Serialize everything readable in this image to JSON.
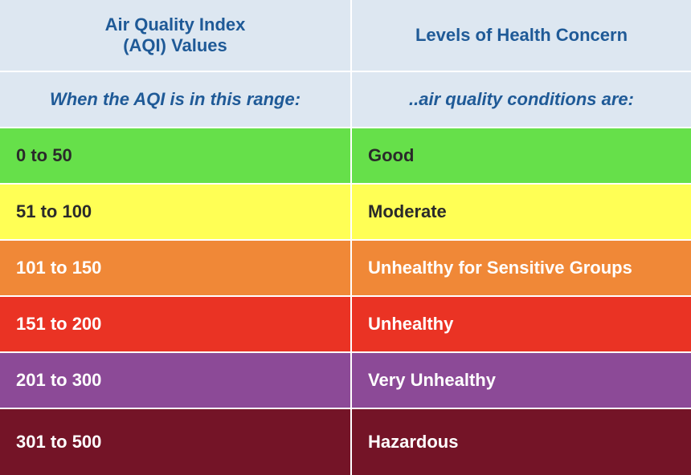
{
  "header": {
    "col1_title": "Air Quality Index\n(AQI) Values",
    "col2_title": "Levels of Health Concern",
    "col1_subtitle": "When the AQI is in this range:",
    "col2_subtitle": "..air quality conditions are:"
  },
  "rows": [
    {
      "range": "0 to 50",
      "level": "Good",
      "color": "#66e04a"
    },
    {
      "range": "51 to 100",
      "level": "Moderate",
      "color": "#ffff55"
    },
    {
      "range": "101 to 150",
      "level": "Unhealthy for Sensitive Groups",
      "color": "#f08837"
    },
    {
      "range": "151 to 200",
      "level": "Unhealthy",
      "color": "#ea3324"
    },
    {
      "range": "201 to 300",
      "level": "Very Unhealthy",
      "color": "#8c4a97"
    },
    {
      "range": "301 to 500",
      "level": "Hazardous",
      "color": "#741427"
    }
  ],
  "colors": {
    "header_background": "#dde7f1",
    "header_text": "#1f5a97"
  }
}
